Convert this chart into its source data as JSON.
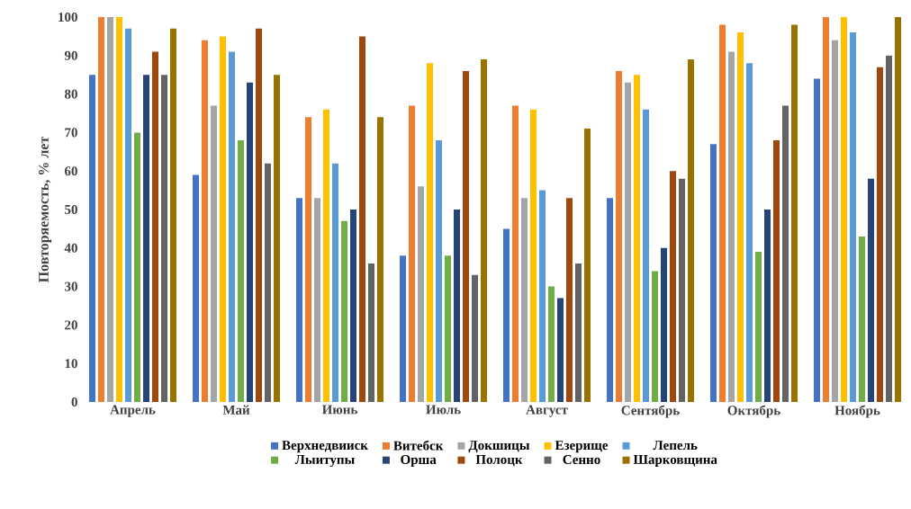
{
  "chart_data": {
    "type": "bar",
    "ylabel": "Повторяемость, % лет",
    "categories": [
      "Апрель",
      "Май",
      "Июнь",
      "Июль",
      "Август",
      "Сентябрь",
      "Октябрь",
      "Ноябрь"
    ],
    "ylim": [
      0,
      100
    ],
    "yticks": [
      0,
      10,
      20,
      30,
      40,
      50,
      60,
      70,
      80,
      90,
      100
    ],
    "grid": false,
    "legend": "bottom",
    "series": [
      {
        "name": "Верхнедвииск",
        "color": "#4472c4",
        "values": [
          85,
          59,
          53,
          38,
          45,
          53,
          67,
          84
        ]
      },
      {
        "name": "Витебск",
        "color": "#ed7d31",
        "values": [
          100,
          94,
          74,
          77,
          77,
          86,
          98,
          100
        ]
      },
      {
        "name": "Докшицы",
        "color": "#a5a5a5",
        "values": [
          100,
          77,
          53,
          56,
          53,
          83,
          91,
          94
        ]
      },
      {
        "name": "Езерище",
        "color": "#ffc000",
        "values": [
          100,
          95,
          76,
          88,
          76,
          85,
          96,
          100
        ]
      },
      {
        "name": "Лепель",
        "color": "#5b9bd5",
        "values": [
          97,
          91,
          62,
          68,
          55,
          76,
          88,
          96
        ]
      },
      {
        "name": "Лыитупы",
        "color": "#70ad47",
        "values": [
          70,
          68,
          47,
          38,
          30,
          34,
          39,
          43
        ]
      },
      {
        "name": "Орша",
        "color": "#264478",
        "values": [
          85,
          83,
          50,
          50,
          27,
          40,
          50,
          58
        ]
      },
      {
        "name": "Полоцк",
        "color": "#9e480e",
        "values": [
          91,
          97,
          95,
          86,
          53,
          60,
          68,
          87
        ]
      },
      {
        "name": "Сенно",
        "color": "#636363",
        "values": [
          85,
          62,
          36,
          33,
          36,
          58,
          77,
          90
        ]
      },
      {
        "name": "Шарковщина",
        "color": "#997300",
        "values": [
          97,
          85,
          74,
          89,
          71,
          89,
          98,
          100
        ]
      }
    ]
  }
}
